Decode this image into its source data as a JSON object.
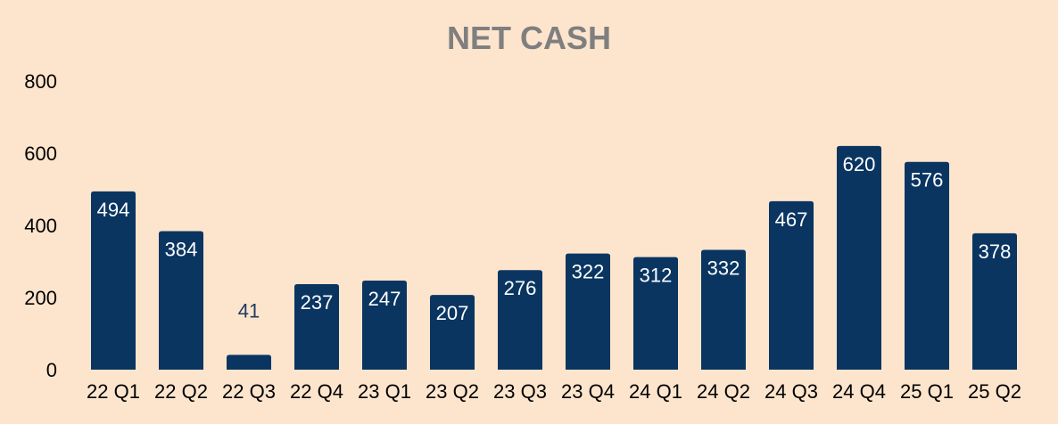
{
  "chart_data": {
    "type": "bar",
    "title": "NET CASH",
    "xlabel": "",
    "ylabel": "",
    "categories": [
      "22 Q1",
      "22 Q2",
      "22 Q3",
      "22 Q4",
      "23 Q1",
      "23 Q2",
      "23 Q3",
      "23 Q4",
      "24 Q1",
      "24 Q2",
      "24 Q3",
      "24 Q4",
      "25 Q1",
      "25 Q2"
    ],
    "values": [
      494,
      384,
      41,
      237,
      247,
      207,
      276,
      322,
      312,
      332,
      467,
      620,
      576,
      378
    ],
    "data_labels": [
      "494",
      "384",
      "41",
      "237",
      "247",
      "207",
      "276",
      "322",
      "312",
      "332",
      "467",
      "620",
      "576",
      "378"
    ],
    "yticks": [
      "0",
      "200",
      "400",
      "600",
      "800"
    ],
    "ylim": [
      0,
      800
    ],
    "grid": false,
    "legend": "none",
    "colors": {
      "bar": "#0a3561",
      "label_inside": "#ffffff",
      "label_outside": "#1f3a5f",
      "title": "#7f7f7f",
      "background": "#fde5cd"
    }
  }
}
